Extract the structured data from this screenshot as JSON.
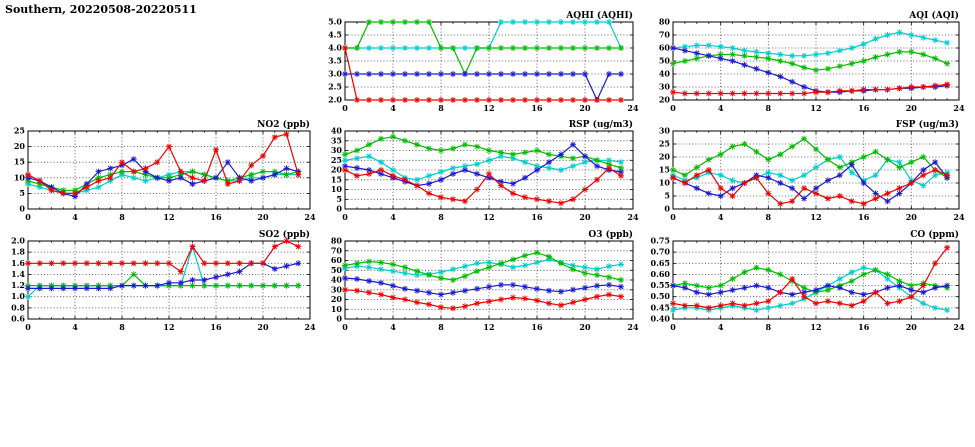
{
  "page_title": "Southern, 20220508-20220511",
  "colors": {
    "red": "#ee0000",
    "blue": "#1a1acc",
    "green": "#00bb00",
    "cyan": "#00cccc"
  },
  "chart_data": [
    {
      "type": "line",
      "title": "AQHI (AQHI)",
      "xlim": [
        0,
        24
      ],
      "xticks": [
        0,
        4,
        8,
        12,
        16,
        20,
        24
      ],
      "ylim": [
        2.0,
        5.0
      ],
      "yticks": [
        2.0,
        2.5,
        3.0,
        3.5,
        4.0,
        4.5,
        5.0
      ],
      "ytick_labels": [
        "2.0",
        "2.5",
        "3.0",
        "3.5",
        "4.0",
        "4.5",
        "5.0"
      ],
      "x_unit": "hour",
      "grid": true,
      "series": [
        {
          "color": "red",
          "values": [
            4,
            2,
            2,
            2,
            2,
            2,
            2,
            2,
            2,
            2,
            2,
            2,
            2,
            2,
            2,
            2,
            2,
            2,
            2,
            2,
            2,
            2,
            2,
            2
          ]
        },
        {
          "color": "blue",
          "values": [
            3,
            3,
            3,
            3,
            3,
            3,
            3,
            3,
            3,
            3,
            3,
            3,
            3,
            3,
            3,
            3,
            3,
            3,
            3,
            3,
            3,
            2,
            3,
            3
          ]
        },
        {
          "color": "green",
          "values": [
            4,
            4,
            5,
            5,
            5,
            5,
            5,
            5,
            4,
            4,
            3,
            4,
            4,
            4,
            4,
            4,
            4,
            4,
            4,
            4,
            4,
            4,
            4,
            4
          ]
        },
        {
          "color": "cyan",
          "values": [
            4,
            4,
            4,
            4,
            4,
            4,
            4,
            4,
            4,
            4,
            4,
            4,
            4,
            5,
            5,
            5,
            5,
            5,
            5,
            5,
            5,
            5,
            5,
            4
          ]
        }
      ]
    },
    {
      "type": "line",
      "title": "AQI (AQI)",
      "xlim": [
        0,
        24
      ],
      "xticks": [
        0,
        4,
        8,
        12,
        16,
        20,
        24
      ],
      "ylim": [
        20,
        80
      ],
      "yticks": [
        20,
        30,
        40,
        50,
        60,
        70,
        80
      ],
      "ytick_labels": [
        "20",
        "30",
        "40",
        "50",
        "60",
        "70",
        "80"
      ],
      "x_unit": "hour",
      "grid": true,
      "series": [
        {
          "color": "red",
          "values": [
            26,
            25,
            25,
            25,
            25,
            25,
            25,
            25,
            25,
            25,
            25,
            25,
            26,
            26,
            27,
            27,
            28,
            28,
            28,
            29,
            30,
            30,
            31,
            32
          ]
        },
        {
          "color": "blue",
          "values": [
            60,
            58,
            56,
            54,
            52,
            50,
            47,
            44,
            41,
            38,
            34,
            30,
            27,
            26,
            26,
            27,
            27,
            28,
            28,
            29,
            29,
            30,
            30,
            31
          ]
        },
        {
          "color": "green",
          "values": [
            48,
            50,
            52,
            54,
            55,
            55,
            54,
            53,
            52,
            50,
            48,
            45,
            43,
            44,
            46,
            48,
            50,
            53,
            55,
            57,
            57,
            55,
            52,
            48
          ]
        },
        {
          "color": "cyan",
          "values": [
            60,
            61,
            62,
            62,
            61,
            60,
            58,
            57,
            56,
            55,
            54,
            54,
            55,
            56,
            58,
            60,
            63,
            67,
            70,
            72,
            70,
            68,
            66,
            64
          ]
        }
      ]
    },
    {
      "type": "line",
      "title": "NO2 (ppb)",
      "xlim": [
        0,
        24
      ],
      "xticks": [
        0,
        4,
        8,
        12,
        16,
        20,
        24
      ],
      "ylim": [
        0,
        25
      ],
      "yticks": [
        0,
        5,
        10,
        15,
        20,
        25
      ],
      "ytick_labels": [
        "0",
        "5",
        "10",
        "15",
        "20",
        "25"
      ],
      "x_unit": "hour",
      "grid": true,
      "series": [
        {
          "color": "red",
          "values": [
            11,
            9,
            6,
            5,
            5,
            7,
            9,
            10,
            15,
            12,
            13,
            15,
            20,
            12,
            10,
            9,
            19,
            8,
            9,
            14,
            17,
            23,
            24,
            11
          ]
        },
        {
          "color": "blue",
          "values": [
            10,
            9,
            7,
            5,
            4,
            8,
            12,
            13,
            14,
            16,
            12,
            10,
            9,
            10,
            8,
            9,
            10,
            15,
            10,
            9,
            10,
            11,
            13,
            12
          ]
        },
        {
          "color": "green",
          "values": [
            9,
            8,
            7,
            6,
            6,
            8,
            10,
            11,
            12,
            12,
            11,
            10,
            10,
            11,
            12,
            11,
            10,
            9,
            10,
            11,
            12,
            12,
            11,
            12
          ]
        },
        {
          "color": "cyan",
          "values": [
            8,
            7,
            6,
            5,
            5,
            6,
            7,
            9,
            11,
            10,
            9,
            10,
            11,
            12,
            12,
            11,
            10,
            9,
            9,
            10,
            10,
            11,
            11,
            11
          ]
        }
      ]
    },
    {
      "type": "line",
      "title": "RSP (ug/m3)",
      "xlim": [
        0,
        24
      ],
      "xticks": [
        0,
        4,
        8,
        12,
        16,
        20,
        24
      ],
      "ylim": [
        0,
        40
      ],
      "yticks": [
        0,
        5,
        10,
        15,
        20,
        25,
        30,
        35,
        40
      ],
      "ytick_labels": [
        "0",
        "5",
        "10",
        "15",
        "20",
        "25",
        "30",
        "35",
        "40"
      ],
      "x_unit": "hour",
      "grid": true,
      "series": [
        {
          "color": "red",
          "values": [
            20,
            17,
            18,
            20,
            17,
            15,
            12,
            8,
            6,
            5,
            4,
            10,
            18,
            12,
            8,
            6,
            5,
            4,
            3,
            5,
            10,
            15,
            21,
            17
          ]
        },
        {
          "color": "blue",
          "values": [
            22,
            21,
            20,
            18,
            16,
            14,
            12,
            13,
            15,
            18,
            20,
            18,
            16,
            14,
            13,
            16,
            20,
            24,
            28,
            33,
            27,
            22,
            20,
            19
          ]
        },
        {
          "color": "green",
          "values": [
            28,
            30,
            33,
            36,
            37,
            35,
            33,
            31,
            30,
            31,
            33,
            32,
            30,
            29,
            28,
            29,
            30,
            28,
            27,
            26,
            27,
            25,
            23,
            21
          ]
        },
        {
          "color": "cyan",
          "values": [
            25,
            26,
            27,
            24,
            20,
            16,
            15,
            17,
            19,
            21,
            22,
            23,
            25,
            27,
            26,
            24,
            22,
            21,
            20,
            22,
            24,
            25,
            25,
            24
          ]
        }
      ]
    },
    {
      "type": "line",
      "title": "FSP (ug/m3)",
      "xlim": [
        0,
        24
      ],
      "xticks": [
        0,
        4,
        8,
        12,
        16,
        20,
        24
      ],
      "ylim": [
        0,
        30
      ],
      "yticks": [
        0,
        5,
        10,
        15,
        20,
        25,
        30
      ],
      "ytick_labels": [
        "0",
        "5",
        "10",
        "15",
        "20",
        "25",
        "30"
      ],
      "x_unit": "hour",
      "grid": true,
      "series": [
        {
          "color": "red",
          "values": [
            12,
            10,
            13,
            15,
            8,
            5,
            10,
            12,
            6,
            2,
            3,
            8,
            6,
            4,
            5,
            3,
            2,
            4,
            6,
            8,
            10,
            13,
            15,
            13
          ]
        },
        {
          "color": "blue",
          "values": [
            12,
            10,
            8,
            6,
            5,
            8,
            10,
            13,
            12,
            10,
            8,
            4,
            8,
            11,
            13,
            17,
            10,
            6,
            3,
            6,
            10,
            15,
            18,
            12
          ]
        },
        {
          "color": "green",
          "values": [
            15,
            13,
            16,
            19,
            21,
            24,
            25,
            22,
            19,
            21,
            24,
            27,
            23,
            19,
            16,
            18,
            20,
            22,
            19,
            16,
            18,
            20,
            15,
            12
          ]
        },
        {
          "color": "cyan",
          "values": [
            13,
            11,
            12,
            14,
            13,
            11,
            10,
            12,
            14,
            13,
            11,
            13,
            16,
            19,
            20,
            14,
            11,
            13,
            19,
            18,
            11,
            9,
            13,
            14
          ]
        }
      ]
    },
    {
      "type": "line",
      "title": "SO2 (ppb)",
      "xlim": [
        0,
        24
      ],
      "xticks": [
        0,
        4,
        8,
        12,
        16,
        20,
        24
      ],
      "ylim": [
        0.6,
        2.0
      ],
      "yticks": [
        0.6,
        0.8,
        1.0,
        1.2,
        1.4,
        1.6,
        1.8,
        2.0
      ],
      "ytick_labels": [
        "0.6",
        "0.8",
        "1.0",
        "1.2",
        "1.4",
        "1.6",
        "1.8",
        "2.0"
      ],
      "x_unit": "hour",
      "grid": true,
      "series": [
        {
          "color": "red",
          "values": [
            1.6,
            1.6,
            1.6,
            1.6,
            1.6,
            1.6,
            1.6,
            1.6,
            1.6,
            1.6,
            1.6,
            1.6,
            1.6,
            1.45,
            1.9,
            1.6,
            1.6,
            1.6,
            1.6,
            1.6,
            1.6,
            1.9,
            2.0,
            1.9
          ]
        },
        {
          "color": "blue",
          "values": [
            1.15,
            1.15,
            1.15,
            1.15,
            1.15,
            1.15,
            1.15,
            1.15,
            1.2,
            1.2,
            1.2,
            1.2,
            1.25,
            1.25,
            1.3,
            1.3,
            1.35,
            1.4,
            1.45,
            1.6,
            1.6,
            1.5,
            1.55,
            1.6
          ]
        },
        {
          "color": "green",
          "values": [
            1.2,
            1.2,
            1.2,
            1.2,
            1.2,
            1.2,
            1.2,
            1.2,
            1.2,
            1.4,
            1.2,
            1.2,
            1.2,
            1.2,
            1.2,
            1.2,
            1.2,
            1.2,
            1.2,
            1.2,
            1.2,
            1.2,
            1.2,
            1.2
          ]
        },
        {
          "color": "cyan",
          "values": [
            1.0,
            1.2,
            1.2,
            1.2,
            1.2,
            1.2,
            1.2,
            1.2,
            1.2,
            1.2,
            1.2,
            1.2,
            1.2,
            1.2,
            1.9,
            1.2,
            1.2,
            1.2,
            1.2,
            1.2,
            1.2,
            1.2,
            1.2,
            1.2
          ]
        }
      ]
    },
    {
      "type": "line",
      "title": "O3 (ppb)",
      "xlim": [
        0,
        24
      ],
      "xticks": [
        0,
        4,
        8,
        12,
        16,
        20,
        24
      ],
      "ylim": [
        0,
        80
      ],
      "yticks": [
        0,
        10,
        20,
        30,
        40,
        50,
        60,
        70,
        80
      ],
      "ytick_labels": [
        "0",
        "10",
        "20",
        "30",
        "40",
        "50",
        "60",
        "70",
        "80"
      ],
      "x_unit": "hour",
      "grid": true,
      "series": [
        {
          "color": "red",
          "values": [
            30,
            29,
            27,
            25,
            22,
            20,
            17,
            15,
            12,
            11,
            13,
            16,
            18,
            20,
            22,
            21,
            19,
            16,
            14,
            17,
            20,
            23,
            25,
            23
          ]
        },
        {
          "color": "blue",
          "values": [
            42,
            41,
            39,
            37,
            34,
            31,
            29,
            27,
            25,
            27,
            29,
            31,
            33,
            35,
            35,
            33,
            31,
            29,
            28,
            30,
            32,
            34,
            35,
            33
          ]
        },
        {
          "color": "green",
          "values": [
            55,
            57,
            59,
            58,
            56,
            53,
            49,
            45,
            42,
            40,
            44,
            49,
            53,
            57,
            61,
            65,
            68,
            64,
            57,
            51,
            47,
            45,
            43,
            40
          ]
        },
        {
          "color": "cyan",
          "values": [
            52,
            54,
            53,
            51,
            49,
            47,
            45,
            46,
            48,
            51,
            54,
            57,
            58,
            56,
            53,
            55,
            58,
            61,
            58,
            55,
            53,
            51,
            54,
            56
          ]
        }
      ]
    },
    {
      "type": "line",
      "title": "CO (ppm)",
      "xlim": [
        0,
        24
      ],
      "xticks": [
        0,
        4,
        8,
        12,
        16,
        20,
        24
      ],
      "ylim": [
        0.4,
        0.75
      ],
      "yticks": [
        0.4,
        0.45,
        0.5,
        0.55,
        0.6,
        0.65,
        0.7,
        0.75
      ],
      "ytick_labels": [
        "0.40",
        "0.45",
        "0.50",
        "0.55",
        "0.60",
        "0.65",
        "0.70",
        "0.75"
      ],
      "x_unit": "hour",
      "grid": true,
      "series": [
        {
          "color": "red",
          "values": [
            0.47,
            0.46,
            0.46,
            0.45,
            0.46,
            0.47,
            0.46,
            0.47,
            0.48,
            0.52,
            0.58,
            0.5,
            0.47,
            0.48,
            0.47,
            0.46,
            0.48,
            0.52,
            0.47,
            0.48,
            0.5,
            0.55,
            0.65,
            0.72
          ]
        },
        {
          "color": "blue",
          "values": [
            0.55,
            0.54,
            0.52,
            0.51,
            0.52,
            0.53,
            0.54,
            0.55,
            0.54,
            0.52,
            0.51,
            0.52,
            0.53,
            0.55,
            0.54,
            0.52,
            0.51,
            0.52,
            0.54,
            0.55,
            0.53,
            0.52,
            0.54,
            0.55
          ]
        },
        {
          "color": "green",
          "values": [
            0.55,
            0.56,
            0.55,
            0.54,
            0.55,
            0.58,
            0.61,
            0.63,
            0.62,
            0.6,
            0.57,
            0.54,
            0.52,
            0.53,
            0.55,
            0.57,
            0.6,
            0.62,
            0.6,
            0.57,
            0.55,
            0.56,
            0.55,
            0.54
          ]
        },
        {
          "color": "cyan",
          "values": [
            0.44,
            0.45,
            0.45,
            0.44,
            0.45,
            0.46,
            0.45,
            0.44,
            0.45,
            0.46,
            0.47,
            0.49,
            0.52,
            0.55,
            0.58,
            0.61,
            0.63,
            0.62,
            0.58,
            0.54,
            0.5,
            0.47,
            0.45,
            0.44
          ]
        }
      ]
    }
  ]
}
